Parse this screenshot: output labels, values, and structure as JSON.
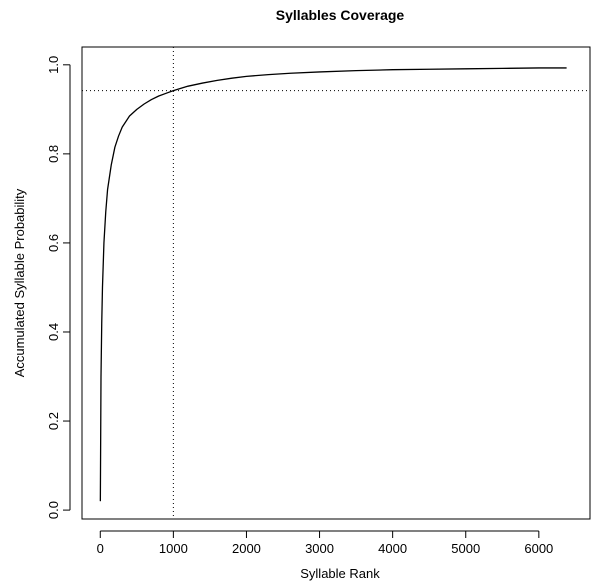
{
  "chart_data": {
    "type": "line",
    "title": "Syllables Coverage",
    "xlabel": "Syllable Rank",
    "ylabel": "Accumulated Syllable Probability",
    "xlim": [
      -250,
      6700
    ],
    "ylim": [
      -0.02,
      1.04
    ],
    "x_ticks": [
      0,
      1000,
      2000,
      3000,
      4000,
      5000,
      6000
    ],
    "y_ticks": [
      0.0,
      0.2,
      0.4,
      0.6,
      0.8,
      1.0
    ],
    "x_tick_labels": [
      "0",
      "1000",
      "2000",
      "3000",
      "4000",
      "5000",
      "6000"
    ],
    "y_tick_labels": [
      "0.0",
      "0.2",
      "0.4",
      "0.6",
      "0.8",
      "1.0"
    ],
    "grid": false,
    "legend": "none",
    "series": [
      {
        "color": "#000000",
        "x": [
          1,
          10,
          20,
          30,
          50,
          75,
          100,
          150,
          200,
          250,
          300,
          400,
          500,
          600,
          700,
          800,
          900,
          1000,
          1100,
          1200,
          1400,
          1600,
          1800,
          2000,
          2300,
          2600,
          3000,
          3500,
          4000,
          4500,
          5000,
          5500,
          6000,
          6380
        ],
        "y": [
          0.02,
          0.3,
          0.42,
          0.5,
          0.6,
          0.67,
          0.72,
          0.775,
          0.815,
          0.84,
          0.86,
          0.885,
          0.9,
          0.912,
          0.922,
          0.93,
          0.936,
          0.942,
          0.947,
          0.952,
          0.959,
          0.965,
          0.97,
          0.974,
          0.978,
          0.981,
          0.984,
          0.987,
          0.989,
          0.99,
          0.991,
          0.992,
          0.993,
          0.993
        ]
      }
    ],
    "reference_lines": {
      "vertical_x": 1000,
      "horizontal_y": 0.942,
      "style": "dotted"
    }
  }
}
